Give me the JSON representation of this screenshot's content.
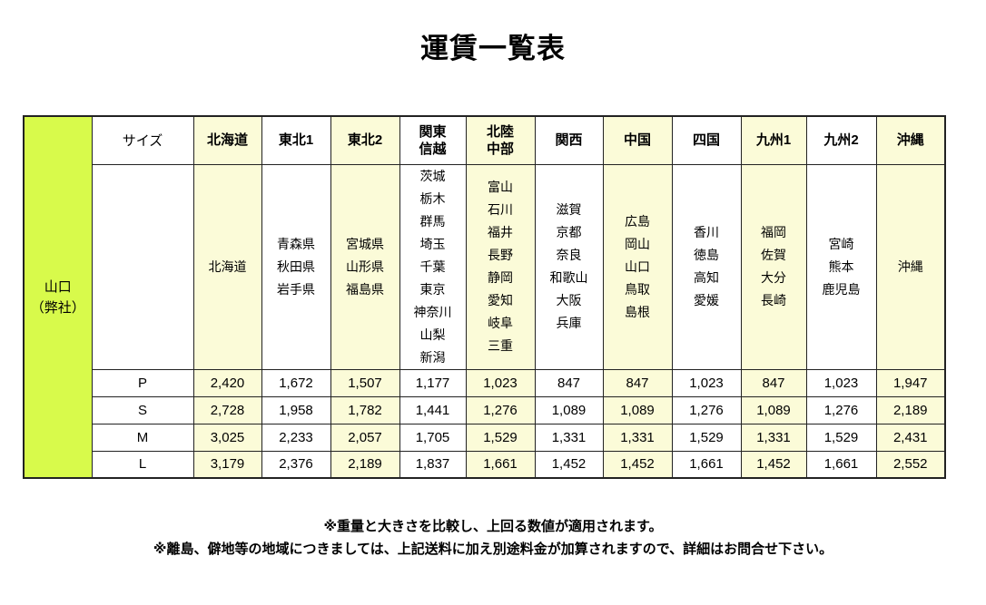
{
  "page": {
    "title": "運賃一覧表",
    "notes": [
      "※重量と大きさを比較し、上回る数値が適用されます。",
      "※離島、僻地等の地域につきましては、上記送料に加え別途料金が加算されますので、詳細はお問合せ下さい。"
    ]
  },
  "table": {
    "origin_lines": [
      "山口",
      "（弊社）"
    ],
    "size_header": "サイズ",
    "regions": [
      {
        "name": "北海道",
        "header_lines": [
          "北海道"
        ],
        "prefectures": [
          "北海道"
        ],
        "shaded": true
      },
      {
        "name": "東北1",
        "header_lines": [
          "東北1"
        ],
        "prefectures": [
          "青森県",
          "秋田県",
          "岩手県"
        ],
        "shaded": false
      },
      {
        "name": "東北2",
        "header_lines": [
          "東北2"
        ],
        "prefectures": [
          "宮城県",
          "山形県",
          "福島県"
        ],
        "shaded": true
      },
      {
        "name": "関東信越",
        "header_lines": [
          "関東",
          "信越"
        ],
        "prefectures": [
          "茨城",
          "栃木",
          "群馬",
          "埼玉",
          "千葉",
          "東京",
          "神奈川",
          "山梨",
          "新潟"
        ],
        "shaded": false
      },
      {
        "name": "北陸中部",
        "header_lines": [
          "北陸",
          "中部"
        ],
        "prefectures": [
          "富山",
          "石川",
          "福井",
          "長野",
          "静岡",
          "愛知",
          "岐阜",
          "三重"
        ],
        "shaded": true
      },
      {
        "name": "関西",
        "header_lines": [
          "関西"
        ],
        "prefectures": [
          "滋賀",
          "京都",
          "奈良",
          "和歌山",
          "大阪",
          "兵庫"
        ],
        "shaded": false
      },
      {
        "name": "中国",
        "header_lines": [
          "中国"
        ],
        "prefectures": [
          "広島",
          "岡山",
          "山口",
          "鳥取",
          "島根"
        ],
        "shaded": true
      },
      {
        "name": "四国",
        "header_lines": [
          "四国"
        ],
        "prefectures": [
          "香川",
          "徳島",
          "高知",
          "愛媛"
        ],
        "shaded": false
      },
      {
        "name": "九州1",
        "header_lines": [
          "九州1"
        ],
        "prefectures": [
          "福岡",
          "佐賀",
          "大分",
          "長崎"
        ],
        "shaded": true
      },
      {
        "name": "九州2",
        "header_lines": [
          "九州2"
        ],
        "prefectures": [
          "宮崎",
          "熊本",
          "鹿児島"
        ],
        "shaded": false
      },
      {
        "name": "沖縄",
        "header_lines": [
          "沖縄"
        ],
        "prefectures": [
          "沖縄"
        ],
        "shaded": true
      }
    ],
    "sizes": [
      {
        "label": "P",
        "fares": [
          "2,420",
          "1,672",
          "1,507",
          "1,177",
          "1,023",
          "847",
          "847",
          "1,023",
          "847",
          "1,023",
          "1,947"
        ]
      },
      {
        "label": "S",
        "fares": [
          "2,728",
          "1,958",
          "1,782",
          "1,441",
          "1,276",
          "1,089",
          "1,089",
          "1,276",
          "1,089",
          "1,276",
          "2,189"
        ]
      },
      {
        "label": "M",
        "fares": [
          "3,025",
          "2,233",
          "2,057",
          "1,705",
          "1,529",
          "1,331",
          "1,331",
          "1,529",
          "1,331",
          "1,529",
          "2,431"
        ]
      },
      {
        "label": "L",
        "fares": [
          "3,179",
          "2,376",
          "2,189",
          "1,837",
          "1,661",
          "1,452",
          "1,452",
          "1,661",
          "1,452",
          "1,661",
          "2,552"
        ]
      }
    ]
  },
  "colors": {
    "origin_bg": "#d8fa4b",
    "shaded_bg": "#fbfbd8",
    "border": "#222222",
    "text": "#000000"
  }
}
